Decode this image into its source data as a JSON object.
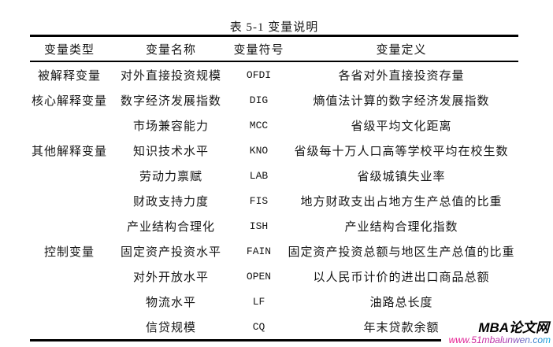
{
  "title": "表 5-1 变量说明",
  "table": {
    "headers": [
      "变量类型",
      "变量名称",
      "变量符号",
      "变量定义"
    ],
    "rows": [
      {
        "type": "被解释变量",
        "name": "对外直接投资规模",
        "symbol": "OFDI",
        "definition": "各省对外直接投资存量"
      },
      {
        "type": "核心解释变量",
        "name": "数字经济发展指数",
        "symbol": "DIG",
        "definition": "熵值法计算的数字经济发展指数"
      },
      {
        "type": "",
        "name": "市场兼容能力",
        "symbol": "MCC",
        "definition": "省级平均文化距离"
      },
      {
        "type": "其他解释变量",
        "name": "知识技术水平",
        "symbol": "KNO",
        "definition": "省级每十万人口高等学校平均在校生数"
      },
      {
        "type": "",
        "name": "劳动力禀赋",
        "symbol": "LAB",
        "definition": "省级城镇失业率"
      },
      {
        "type": "",
        "name": "财政支持力度",
        "symbol": "FIS",
        "definition": "地方财政支出占地方生产总值的比重"
      },
      {
        "type": "",
        "name": "产业结构合理化",
        "symbol": "ISH",
        "definition": "产业结构合理化指数"
      },
      {
        "type": "控制变量",
        "name": "固定资产投资水平",
        "symbol": "FAIN",
        "definition": "固定资产投资总额与地区生产总值的比重"
      },
      {
        "type": "",
        "name": "对外开放水平",
        "symbol": "OPEN",
        "definition": "以人民币计价的进出口商品总额"
      },
      {
        "type": "",
        "name": "物流水平",
        "symbol": "LF",
        "definition": "油路总长度"
      },
      {
        "type": "",
        "name": "信贷规模",
        "symbol": "CQ",
        "definition": "年末贷款余额"
      }
    ]
  },
  "watermark": {
    "brand": "MBA论文网",
    "url": "www.51mbalunwen.com",
    "accent_start": "#ee1a8c",
    "accent_end": "#00a6dd"
  }
}
